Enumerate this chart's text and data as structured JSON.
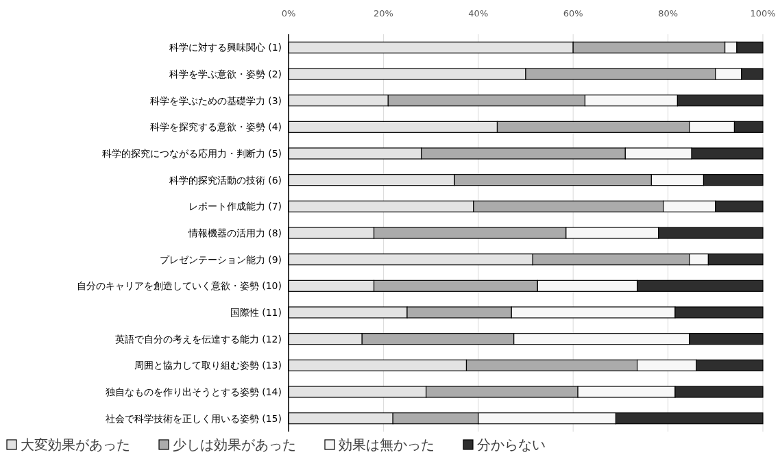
{
  "chart_data": {
    "type": "bar",
    "orientation": "horizontal",
    "stacked": true,
    "categories": [
      "科学に対する興味関心 (1)",
      "科学を学ぶ意欲・姿勢 (2)",
      "科学を学ぶための基礎学力 (3)",
      "科学を探究する意欲・姿勢 (4)",
      "科学的探究につながる応用力・判断力 (5)",
      "科学的探究活動の技術 (6)",
      "レポート作成能力 (7)",
      "情報機器の活用力 (8)",
      "プレゼンテーション能力 (9)",
      "自分のキャリアを創造していく意欲・姿勢 (10)",
      "国際性 (11)",
      "英語で自分の考えを伝達する能力 (12)",
      "周囲と協力して取り組む姿勢 (13)",
      "独自なものを作り出そうとする姿勢 (14)",
      "社会で科学技術を正しく用いる姿勢 (15)"
    ],
    "series": [
      {
        "name": "大変効果があった",
        "color": "#e3e3e3",
        "values": [
          60,
          50,
          21,
          44,
          28,
          35,
          39,
          18,
          51.5,
          18,
          25,
          15.5,
          37.5,
          29,
          22
        ]
      },
      {
        "name": "少しは効果があった",
        "color": "#ababab",
        "values": [
          32,
          40,
          41.5,
          40.5,
          43,
          41.5,
          40,
          40.5,
          33,
          34.5,
          22,
          32,
          36,
          32,
          18
        ]
      },
      {
        "name": "効果は無かった",
        "color": "#f7f7f7",
        "values": [
          2.5,
          5.5,
          19.5,
          9.5,
          14,
          11,
          11,
          19.5,
          4,
          21,
          34.5,
          37,
          12.5,
          20.5,
          29
        ]
      },
      {
        "name": "分からない",
        "color": "#2e2e2e",
        "values": [
          5.5,
          4.5,
          18,
          6,
          15,
          12.5,
          10,
          22,
          11.5,
          26.5,
          18.5,
          15.5,
          14,
          18.5,
          31
        ]
      }
    ],
    "xlim": [
      0,
      100
    ],
    "xticks": [
      {
        "value": 0,
        "label": "0%"
      },
      {
        "value": 20,
        "label": "20%"
      },
      {
        "value": 40,
        "label": "40%"
      },
      {
        "value": 60,
        "label": "60%"
      },
      {
        "value": 80,
        "label": "80%"
      },
      {
        "value": 100,
        "label": "100%"
      }
    ],
    "grid": "x",
    "legend": "bottom"
  }
}
